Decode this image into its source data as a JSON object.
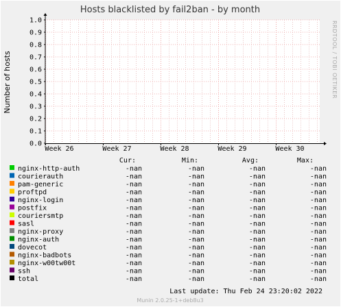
{
  "chart_data": {
    "type": "line",
    "title": "Hosts blacklisted by fail2ban - by month",
    "ylabel": "Number of hosts",
    "xlabel": "",
    "ylim": [
      0.0,
      1.0
    ],
    "y_ticks": [
      "0.0",
      "0.1",
      "0.2",
      "0.3",
      "0.4",
      "0.5",
      "0.6",
      "0.7",
      "0.8",
      "0.9",
      "1.0"
    ],
    "x_ticks": [
      "Week 26",
      "Week 27",
      "Week 28",
      "Week 29",
      "Week 30"
    ],
    "grid": true,
    "legend_placement": "bottom",
    "column_headers": {
      "cur": "Cur:",
      "min": "Min:",
      "avg": "Avg:",
      "max": "Max:"
    },
    "series": [
      {
        "name": "nginx-http-auth",
        "color": "#00cc00",
        "cur": "-nan",
        "min": "-nan",
        "avg": "-nan",
        "max": "-nan"
      },
      {
        "name": "courierauth",
        "color": "#0066b3",
        "cur": "-nan",
        "min": "-nan",
        "avg": "-nan",
        "max": "-nan"
      },
      {
        "name": "pam-generic",
        "color": "#ff8000",
        "cur": "-nan",
        "min": "-nan",
        "avg": "-nan",
        "max": "-nan"
      },
      {
        "name": "proftpd",
        "color": "#ffcc00",
        "cur": "-nan",
        "min": "-nan",
        "avg": "-nan",
        "max": "-nan"
      },
      {
        "name": "nginx-login",
        "color": "#330099",
        "cur": "-nan",
        "min": "-nan",
        "avg": "-nan",
        "max": "-nan"
      },
      {
        "name": "postfix",
        "color": "#990099",
        "cur": "-nan",
        "min": "-nan",
        "avg": "-nan",
        "max": "-nan"
      },
      {
        "name": "couriersmtp",
        "color": "#ccff00",
        "cur": "-nan",
        "min": "-nan",
        "avg": "-nan",
        "max": "-nan"
      },
      {
        "name": "sasl",
        "color": "#ff0000",
        "cur": "-nan",
        "min": "-nan",
        "avg": "-nan",
        "max": "-nan"
      },
      {
        "name": "nginx-proxy",
        "color": "#808080",
        "cur": "-nan",
        "min": "-nan",
        "avg": "-nan",
        "max": "-nan"
      },
      {
        "name": "nginx-auth",
        "color": "#008f00",
        "cur": "-nan",
        "min": "-nan",
        "avg": "-nan",
        "max": "-nan"
      },
      {
        "name": "dovecot",
        "color": "#00487d",
        "cur": "-nan",
        "min": "-nan",
        "avg": "-nan",
        "max": "-nan"
      },
      {
        "name": "nginx-badbots",
        "color": "#b35a00",
        "cur": "-nan",
        "min": "-nan",
        "avg": "-nan",
        "max": "-nan"
      },
      {
        "name": "nginx-w00tw00t",
        "color": "#b38f00",
        "cur": "-nan",
        "min": "-nan",
        "avg": "-nan",
        "max": "-nan"
      },
      {
        "name": "ssh",
        "color": "#6b006b",
        "cur": "-nan",
        "min": "-nan",
        "avg": "-nan",
        "max": "-nan"
      },
      {
        "name": "total",
        "color": "#000000",
        "cur": "-nan",
        "min": "-nan",
        "avg": "-nan",
        "max": "-nan"
      }
    ],
    "last_update": "Last update:  Thu Feb 24 23:20:02 2022",
    "side_label": "RRDTOOL / TOBI OETIKER",
    "footer": "Munin 2.0.25-1+deb8u3"
  }
}
